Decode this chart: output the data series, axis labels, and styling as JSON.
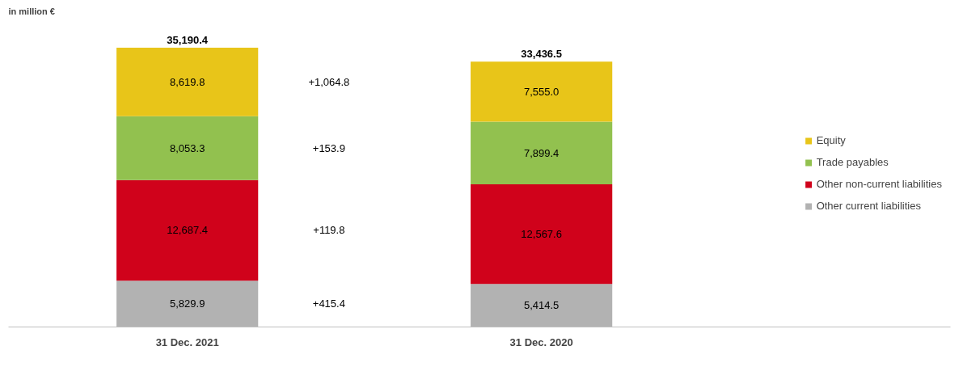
{
  "chart_data": {
    "type": "bar",
    "stacked": true,
    "ylabel": "in million €",
    "categories": [
      "31 Dec. 2021",
      "31 Dec. 2020"
    ],
    "series": [
      {
        "name": "Other current liabilities",
        "color": "#b2b2b2",
        "values": [
          5829.9,
          5414.5
        ],
        "value_labels": [
          "5,829.9",
          "5,414.5"
        ]
      },
      {
        "name": "Other non-current liabilities",
        "color": "#d0021b",
        "values": [
          12687.4,
          12567.6
        ],
        "value_labels": [
          "12,687.4",
          "12,567.6"
        ]
      },
      {
        "name": "Trade payables",
        "color": "#92c14f",
        "values": [
          8053.3,
          7899.4
        ],
        "value_labels": [
          "8,053.3",
          "7,899.4"
        ]
      },
      {
        "name": "Equity",
        "color": "#e8c519",
        "values": [
          8619.8,
          7555.0
        ],
        "value_labels": [
          "8,619.8",
          "7,555.0"
        ]
      }
    ],
    "totals": [
      "35,190.4",
      "33,436.5"
    ],
    "annotations": [
      "+415.4",
      "+119.8",
      "+153.9",
      "+1,064.8"
    ],
    "legend": "right",
    "grid": false
  }
}
